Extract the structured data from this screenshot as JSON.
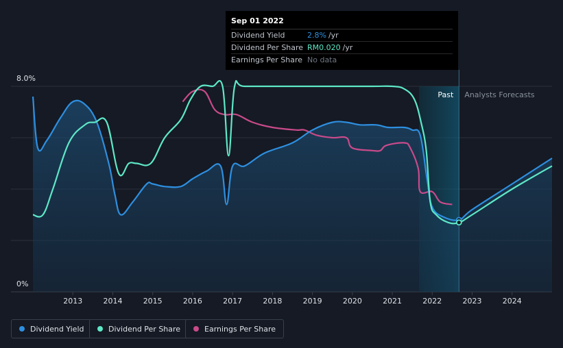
{
  "chart_data": {
    "type": "line",
    "x_range": [
      2012.0,
      2025.0
    ],
    "ylim": [
      0,
      8.0
    ],
    "y_tick_labels": [
      "8.0%",
      "0%"
    ],
    "x_ticks": [
      2013,
      2014,
      2015,
      2016,
      2017,
      2018,
      2019,
      2020,
      2021,
      2022,
      2023,
      2024
    ],
    "x_tick_labels": [
      "2013",
      "2014",
      "2015",
      "2016",
      "2017",
      "2018",
      "2019",
      "2020",
      "2021",
      "2022",
      "2023",
      "2024"
    ],
    "past_label": "Past",
    "forecast_label": "Analysts Forecasts",
    "past_boundary_x": 2022.67,
    "forecast_shade_start_x": 2021.67,
    "series": [
      {
        "name": "Dividend Yield",
        "color": "#2e8fe0",
        "points": [
          [
            2012.0,
            7.6
          ],
          [
            2012.12,
            5.6
          ],
          [
            2012.35,
            5.9
          ],
          [
            2012.7,
            6.8
          ],
          [
            2013.0,
            7.4
          ],
          [
            2013.3,
            7.3
          ],
          [
            2013.6,
            6.6
          ],
          [
            2013.9,
            5.0
          ],
          [
            2014.05,
            3.8
          ],
          [
            2014.2,
            3.0
          ],
          [
            2014.5,
            3.5
          ],
          [
            2014.85,
            4.2
          ],
          [
            2015.0,
            4.2
          ],
          [
            2015.3,
            4.1
          ],
          [
            2015.7,
            4.1
          ],
          [
            2016.0,
            4.4
          ],
          [
            2016.35,
            4.7
          ],
          [
            2016.7,
            4.9
          ],
          [
            2016.85,
            3.4
          ],
          [
            2017.0,
            4.9
          ],
          [
            2017.3,
            4.9
          ],
          [
            2017.8,
            5.4
          ],
          [
            2018.5,
            5.8
          ],
          [
            2019.0,
            6.3
          ],
          [
            2019.5,
            6.6
          ],
          [
            2019.85,
            6.6
          ],
          [
            2020.2,
            6.5
          ],
          [
            2020.6,
            6.5
          ],
          [
            2020.9,
            6.4
          ],
          [
            2021.3,
            6.4
          ],
          [
            2021.5,
            6.3
          ],
          [
            2021.7,
            6.1
          ],
          [
            2021.87,
            4.4
          ],
          [
            2022.0,
            3.3
          ],
          [
            2022.3,
            2.9
          ],
          [
            2022.67,
            2.8
          ],
          [
            2023.0,
            3.2
          ],
          [
            2024.0,
            4.2
          ],
          [
            2025.0,
            5.2
          ]
        ]
      },
      {
        "name": "Dividend Per Share",
        "color": "#5ee8c8",
        "points": [
          [
            2012.0,
            3.0
          ],
          [
            2012.25,
            3.0
          ],
          [
            2012.5,
            4.0
          ],
          [
            2012.9,
            5.8
          ],
          [
            2013.3,
            6.5
          ],
          [
            2013.55,
            6.6
          ],
          [
            2013.85,
            6.6
          ],
          [
            2014.15,
            4.6
          ],
          [
            2014.4,
            5.0
          ],
          [
            2014.6,
            5.0
          ],
          [
            2014.95,
            5.0
          ],
          [
            2015.3,
            6.0
          ],
          [
            2015.7,
            6.7
          ],
          [
            2015.95,
            7.5
          ],
          [
            2016.2,
            8.0
          ],
          [
            2016.5,
            8.0
          ],
          [
            2016.75,
            8.0
          ],
          [
            2016.9,
            5.3
          ],
          [
            2017.05,
            8.0
          ],
          [
            2017.3,
            8.0
          ],
          [
            2018.5,
            8.0
          ],
          [
            2019.5,
            8.0
          ],
          [
            2020.5,
            8.0
          ],
          [
            2021.0,
            8.0
          ],
          [
            2021.3,
            7.9
          ],
          [
            2021.55,
            7.5
          ],
          [
            2021.72,
            6.6
          ],
          [
            2021.85,
            5.5
          ],
          [
            2021.95,
            3.5
          ],
          [
            2022.1,
            3.0
          ],
          [
            2022.4,
            2.7
          ],
          [
            2022.67,
            2.7
          ],
          [
            2023.0,
            3.0
          ],
          [
            2024.0,
            4.0
          ],
          [
            2025.0,
            4.9
          ]
        ]
      },
      {
        "name": "Earnings Per Share",
        "color": "#c94a8a",
        "points": [
          [
            2015.75,
            7.4
          ],
          [
            2016.0,
            7.8
          ],
          [
            2016.3,
            7.8
          ],
          [
            2016.55,
            7.1
          ],
          [
            2016.8,
            6.9
          ],
          [
            2017.1,
            6.9
          ],
          [
            2017.5,
            6.6
          ],
          [
            2018.0,
            6.4
          ],
          [
            2018.6,
            6.3
          ],
          [
            2018.8,
            6.3
          ],
          [
            2019.1,
            6.1
          ],
          [
            2019.5,
            6.0
          ],
          [
            2019.85,
            6.0
          ],
          [
            2020.0,
            5.6
          ],
          [
            2020.5,
            5.5
          ],
          [
            2020.7,
            5.5
          ],
          [
            2020.85,
            5.7
          ],
          [
            2021.3,
            5.8
          ],
          [
            2021.45,
            5.6
          ],
          [
            2021.65,
            4.8
          ],
          [
            2021.7,
            3.9
          ],
          [
            2022.0,
            3.9
          ],
          [
            2022.2,
            3.5
          ],
          [
            2022.5,
            3.4
          ]
        ]
      }
    ]
  },
  "tooltip": {
    "date": "Sep 01 2022",
    "rows": [
      {
        "label": "Dividend Yield",
        "value": "2.8%",
        "unit": "/yr",
        "value_color": "#2e8fe0"
      },
      {
        "label": "Dividend Per Share",
        "value": "RM0.020",
        "unit": "/yr",
        "value_color": "#5ee8c8"
      },
      {
        "label": "Earnings Per Share",
        "value": "No data",
        "unit": "",
        "value_color": "#6f7682"
      }
    ]
  },
  "legend": [
    {
      "label": "Dividend Yield",
      "color": "#2e8fe0"
    },
    {
      "label": "Dividend Per Share",
      "color": "#5ee8c8"
    },
    {
      "label": "Earnings Per Share",
      "color": "#c94a8a"
    }
  ]
}
